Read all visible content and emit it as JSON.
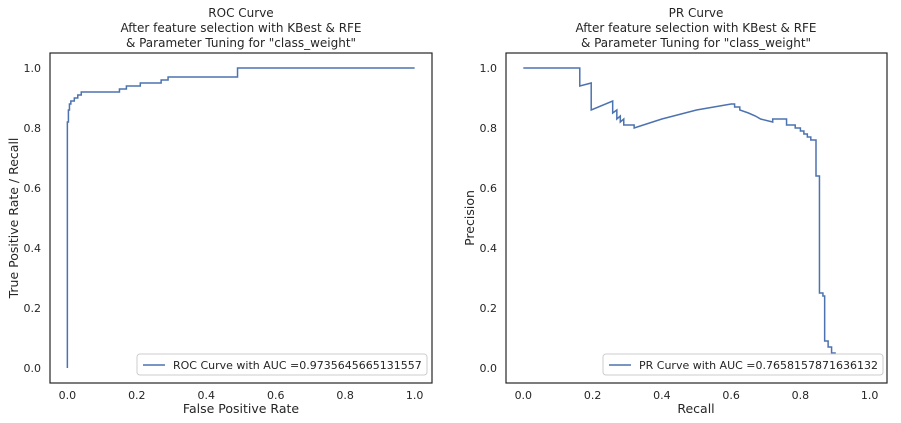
{
  "chart_data": [
    {
      "type": "line",
      "title": "ROC Curve\nAfter feature selection with KBest & RFE\n& Parameter Tuning for \"class_weight\"",
      "xlabel": "False Positive Rate",
      "ylabel": "True Positive Rate / Recall",
      "xlim": [
        -0.05,
        1.05
      ],
      "ylim": [
        -0.05,
        1.05
      ],
      "xticks": [
        "0.0",
        "0.2",
        "0.4",
        "0.6",
        "0.8",
        "1.0"
      ],
      "yticks": [
        "0.0",
        "0.2",
        "0.4",
        "0.6",
        "0.8",
        "1.0"
      ],
      "grid": false,
      "legend_position": "lower-right",
      "series": [
        {
          "name": "ROC Curve with AUC =0.9735645665131557",
          "color": "#4c72b0",
          "x": [
            0.0,
            0.0,
            0.003,
            0.003,
            0.006,
            0.006,
            0.01,
            0.01,
            0.02,
            0.02,
            0.03,
            0.03,
            0.04,
            0.04,
            0.15,
            0.15,
            0.17,
            0.17,
            0.21,
            0.21,
            0.27,
            0.27,
            0.29,
            0.29,
            0.49,
            0.49,
            1.0
          ],
          "y": [
            0.0,
            0.82,
            0.82,
            0.86,
            0.86,
            0.88,
            0.88,
            0.89,
            0.89,
            0.9,
            0.9,
            0.91,
            0.91,
            0.92,
            0.92,
            0.93,
            0.93,
            0.94,
            0.94,
            0.95,
            0.95,
            0.96,
            0.96,
            0.97,
            0.97,
            1.0,
            1.0
          ]
        }
      ]
    },
    {
      "type": "line",
      "title": "PR Curve\nAfter feature selection with KBest & RFE\n& Parameter Tuning for \"class_weight\"",
      "xlabel": "Recall",
      "ylabel": "Precision",
      "xlim": [
        -0.05,
        1.05
      ],
      "ylim": [
        -0.05,
        1.05
      ],
      "xticks": [
        "0.0",
        "0.2",
        "0.4",
        "0.6",
        "0.8",
        "1.0"
      ],
      "yticks": [
        "0.0",
        "0.2",
        "0.4",
        "0.6",
        "0.8",
        "1.0"
      ],
      "grid": false,
      "legend_position": "lower-right",
      "series": [
        {
          "name": "PR Curve with AUC =0.7658157871636132",
          "color": "#4c72b0",
          "x": [
            0.0,
            0.163,
            0.163,
            0.196,
            0.196,
            0.258,
            0.258,
            0.27,
            0.27,
            0.28,
            0.28,
            0.29,
            0.29,
            0.32,
            0.32,
            0.4,
            0.5,
            0.6,
            0.61,
            0.61,
            0.625,
            0.625,
            0.65,
            0.65,
            0.67,
            0.67,
            0.685,
            0.685,
            0.72,
            0.72,
            0.76,
            0.76,
            0.785,
            0.785,
            0.8,
            0.8,
            0.81,
            0.81,
            0.82,
            0.82,
            0.83,
            0.83,
            0.845,
            0.845,
            0.855,
            0.855,
            0.865,
            0.865,
            0.87,
            0.87,
            0.88,
            0.88,
            0.89,
            0.89,
            0.9,
            0.9,
            0.91,
            0.91,
            0.92
          ],
          "y": [
            1.0,
            1.0,
            0.94,
            0.95,
            0.86,
            0.89,
            0.85,
            0.86,
            0.83,
            0.84,
            0.82,
            0.83,
            0.81,
            0.81,
            0.8,
            0.83,
            0.86,
            0.88,
            0.88,
            0.87,
            0.87,
            0.86,
            0.85,
            0.85,
            0.84,
            0.84,
            0.83,
            0.83,
            0.82,
            0.83,
            0.83,
            0.81,
            0.81,
            0.8,
            0.8,
            0.79,
            0.79,
            0.78,
            0.78,
            0.77,
            0.77,
            0.76,
            0.76,
            0.64,
            0.64,
            0.25,
            0.25,
            0.24,
            0.24,
            0.09,
            0.09,
            0.07,
            0.07,
            0.05,
            0.05,
            0.04,
            0.04,
            0.03,
            0.03
          ]
        }
      ]
    }
  ]
}
